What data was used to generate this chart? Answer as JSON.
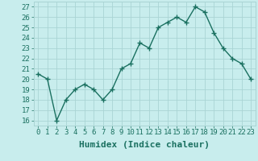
{
  "x": [
    0,
    1,
    2,
    3,
    4,
    5,
    6,
    7,
    8,
    9,
    10,
    11,
    12,
    13,
    14,
    15,
    16,
    17,
    18,
    19,
    20,
    21,
    22,
    23
  ],
  "y": [
    20.5,
    20.0,
    16.0,
    18.0,
    19.0,
    19.5,
    19.0,
    18.0,
    19.0,
    21.0,
    21.5,
    23.5,
    23.0,
    25.0,
    25.5,
    26.0,
    25.5,
    27.0,
    26.5,
    24.5,
    23.0,
    22.0,
    21.5,
    20.0
  ],
  "line_color": "#1a7060",
  "marker": "+",
  "marker_size": 4,
  "line_width": 1.0,
  "xlim": [
    -0.5,
    23.5
  ],
  "ylim": [
    15.5,
    27.5
  ],
  "yticks": [
    16,
    17,
    18,
    19,
    20,
    21,
    22,
    23,
    24,
    25,
    26,
    27
  ],
  "xticks": [
    0,
    1,
    2,
    3,
    4,
    5,
    6,
    7,
    8,
    9,
    10,
    11,
    12,
    13,
    14,
    15,
    16,
    17,
    18,
    19,
    20,
    21,
    22,
    23
  ],
  "xlabel": "Humidex (Indice chaleur)",
  "background_color": "#c8eded",
  "grid_color": "#aad4d4",
  "tick_label_fontsize": 6.5,
  "xlabel_fontsize": 8,
  "tick_color": "#1a7060"
}
